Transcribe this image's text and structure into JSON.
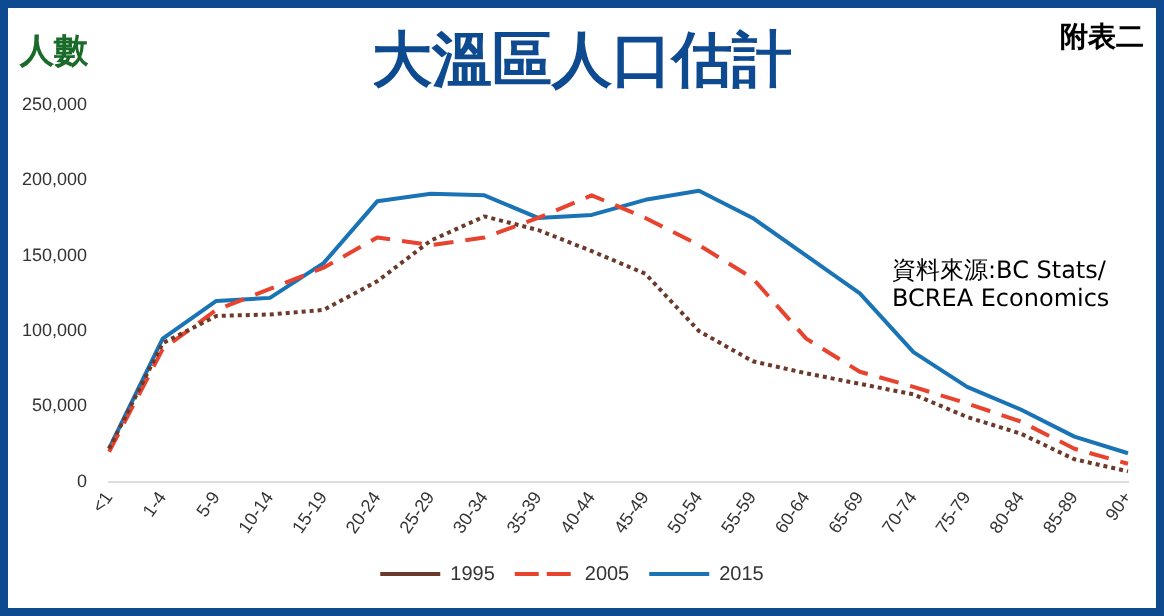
{
  "chart_data": {
    "type": "line",
    "title": "大溫區人口估計",
    "ylabel": "人數",
    "annotations": [
      "附表二",
      "資料來源:BC Stats/\nBCREA Economics"
    ],
    "categories": [
      "<1",
      "1-4",
      "5-9",
      "10-14",
      "15-19",
      "20-24",
      "25-29",
      "30-34",
      "35-39",
      "40-44",
      "45-49",
      "50-54",
      "55-59",
      "60-64",
      "65-69",
      "70-74",
      "75-79",
      "80-84",
      "85-89",
      "90+"
    ],
    "series": [
      {
        "name": "1995",
        "color": "#6b3a2a",
        "line_style": "dotted",
        "values": [
          22000,
          92000,
          110000,
          111000,
          114000,
          133000,
          160000,
          176000,
          167000,
          153000,
          138000,
          100000,
          80000,
          72000,
          65000,
          58000,
          43000,
          32000,
          15000,
          7000
        ]
      },
      {
        "name": "2005",
        "color": "#e8432e",
        "line_style": "dashed",
        "values": [
          20000,
          88000,
          114000,
          128000,
          142000,
          162000,
          157000,
          162000,
          175000,
          190000,
          175000,
          157000,
          135000,
          95000,
          73000,
          63000,
          52000,
          40000,
          22000,
          12000
        ]
      },
      {
        "name": "2015",
        "color": "#1a73b5",
        "line_style": "solid",
        "values": [
          22000,
          95000,
          120000,
          122000,
          145000,
          186000,
          191000,
          190000,
          175000,
          177000,
          187000,
          193000,
          175000,
          150000,
          125000,
          86000,
          63000,
          48000,
          30000,
          19000
        ]
      }
    ],
    "ylim": [
      0,
      250000
    ],
    "yticks": [
      0,
      {
        "value": 50000,
        "label": "50,000"
      },
      {
        "value": 100000,
        "label": "100,000"
      },
      {
        "value": 150000,
        "label": "150,000"
      },
      {
        "value": 200000,
        "label": "200,000"
      },
      {
        "value": 250000,
        "label": "250,000"
      }
    ],
    "grid": false,
    "legend": "bottom",
    "marker": "none"
  }
}
